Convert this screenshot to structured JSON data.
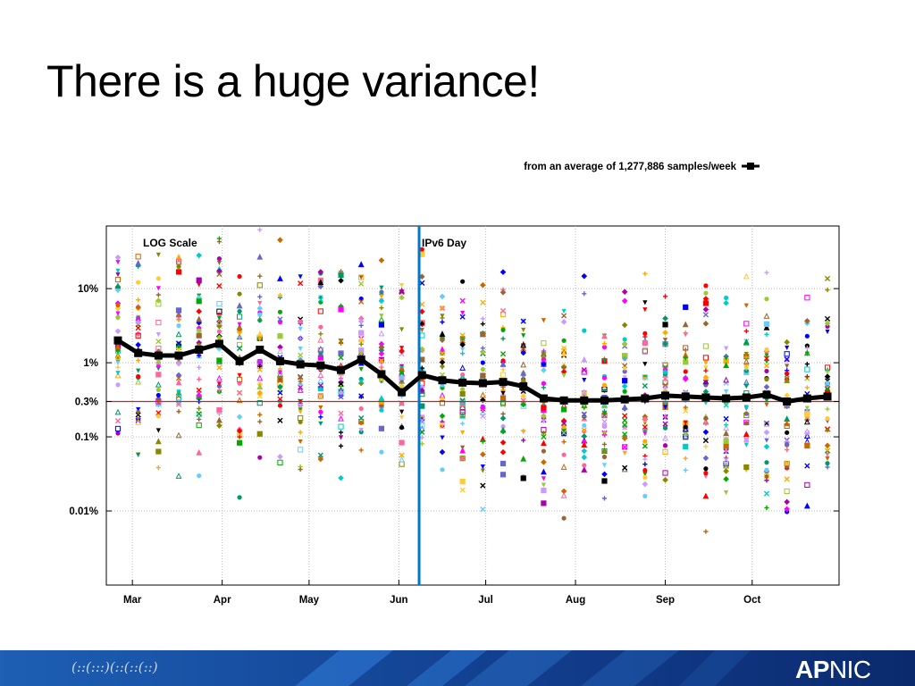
{
  "slide": {
    "title": "There is a huge variance!"
  },
  "footer": {
    "logo_bold": "AP",
    "logo_thin": "NIC",
    "glyphs": "(::(:::)(::(::(::)"
  },
  "colors": {
    "accent_blue": "#0077cc",
    "threshold_red": "#cc2222",
    "average_line": "#000000",
    "footer_dark": "#0b2a6e"
  },
  "chart_data": {
    "type": "scatter",
    "scale": "log",
    "annotations": {
      "scale_label": "LOG Scale",
      "event_label": "IPv6 Day",
      "event_date": "2011-06-08"
    },
    "legend": {
      "label": "from an average of 1,277,886 samples/week",
      "placement": "top-right"
    },
    "y_ticks": [
      {
        "value": 10,
        "label": "10%"
      },
      {
        "value": 1,
        "label": "1%"
      },
      {
        "value": 0.3,
        "label": "0.3%"
      },
      {
        "value": 0.1,
        "label": "0.1%"
      },
      {
        "value": 0.01,
        "label": "0.01%"
      }
    ],
    "ylim": [
      0.001,
      70
    ],
    "x_ticks": [
      {
        "date": "2011-03-01",
        "label": "Mar"
      },
      {
        "date": "2011-04-01",
        "label": "Apr"
      },
      {
        "date": "2011-05-01",
        "label": "May"
      },
      {
        "date": "2011-06-01",
        "label": "Jun"
      },
      {
        "date": "2011-07-01",
        "label": "Jul"
      },
      {
        "date": "2011-08-01",
        "label": "Aug"
      },
      {
        "date": "2011-09-01",
        "label": "Sep"
      },
      {
        "date": "2011-10-01",
        "label": "Oct"
      }
    ],
    "xlim": [
      "2011-02-20",
      "2011-10-31"
    ],
    "grid": true,
    "reference_line": {
      "value": 0.3,
      "color": "#cc2222"
    },
    "average_series": {
      "name": "from an average of 1,277,886 samples/week",
      "x": [
        "2011-02-24",
        "2011-03-03",
        "2011-03-10",
        "2011-03-17",
        "2011-03-24",
        "2011-03-31",
        "2011-04-07",
        "2011-04-14",
        "2011-04-21",
        "2011-04-28",
        "2011-05-05",
        "2011-05-12",
        "2011-05-19",
        "2011-05-26",
        "2011-06-02",
        "2011-06-09",
        "2011-06-16",
        "2011-06-23",
        "2011-06-30",
        "2011-07-07",
        "2011-07-14",
        "2011-07-21",
        "2011-07-28",
        "2011-08-04",
        "2011-08-11",
        "2011-08-18",
        "2011-08-25",
        "2011-09-01",
        "2011-09-08",
        "2011-09-15",
        "2011-09-22",
        "2011-09-29",
        "2011-10-06",
        "2011-10-13",
        "2011-10-20",
        "2011-10-27"
      ],
      "y": [
        2.0,
        1.35,
        1.25,
        1.25,
        1.5,
        1.8,
        1.05,
        1.5,
        1.05,
        0.95,
        0.92,
        0.8,
        1.1,
        0.7,
        0.4,
        0.68,
        0.58,
        0.54,
        0.53,
        0.55,
        0.48,
        0.33,
        0.31,
        0.31,
        0.31,
        0.32,
        0.33,
        0.36,
        0.35,
        0.34,
        0.33,
        0.34,
        0.37,
        0.3,
        0.33,
        0.35
      ]
    },
    "scatter_series": {
      "description": "many individual network series per week",
      "palette": [
        "#ff0000",
        "#00aa00",
        "#0000ff",
        "#ff00ff",
        "#00cccc",
        "#ffaa00",
        "#888800",
        "#aa00aa",
        "#66ccff",
        "#ff6699",
        "#99cc33",
        "#000000",
        "#cc6600",
        "#6666cc",
        "#009966",
        "#ffcc33",
        "#996633",
        "#cc99ff"
      ]
    }
  }
}
